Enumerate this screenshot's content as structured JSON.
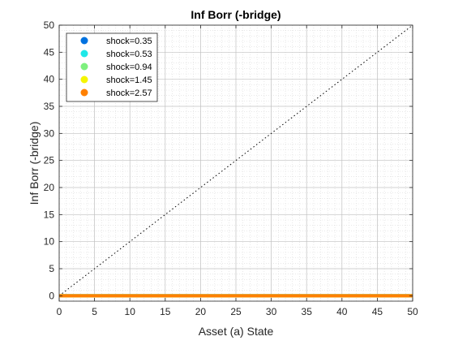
{
  "chart_data": {
    "type": "scatter",
    "title": "Inf Borr (-bridge)",
    "xlabel": "Asset (a) State",
    "ylabel": "Inf Borr (-bridge)",
    "xlim": [
      0,
      50
    ],
    "ylim": [
      -1,
      50
    ],
    "xticks": [
      0,
      5,
      10,
      15,
      20,
      25,
      30,
      35,
      40,
      45,
      50
    ],
    "yticks": [
      0,
      5,
      10,
      15,
      20,
      25,
      30,
      35,
      40,
      45,
      50
    ],
    "grid": "major and minor, dotted",
    "legend_position": "top-left",
    "reference_line": {
      "style": "dotted",
      "color": "#000000",
      "x": [
        0,
        50
      ],
      "y": [
        0,
        50
      ]
    },
    "series": [
      {
        "name": "shock=0.35",
        "color": "#0072e0",
        "x": [
          0,
          50
        ],
        "y": [
          0,
          0
        ]
      },
      {
        "name": "shock=0.53",
        "color": "#1ee8e8",
        "x": [
          0,
          50
        ],
        "y": [
          0,
          0
        ]
      },
      {
        "name": "shock=0.94",
        "color": "#7ef07e",
        "x": [
          0,
          50
        ],
        "y": [
          0,
          0
        ]
      },
      {
        "name": "shock=1.45",
        "color": "#f5f500",
        "x": [
          0,
          50
        ],
        "y": [
          0,
          0
        ]
      },
      {
        "name": "shock=2.57",
        "color": "#ff8000",
        "x": [
          0,
          50
        ],
        "y": [
          0,
          0
        ]
      }
    ]
  }
}
